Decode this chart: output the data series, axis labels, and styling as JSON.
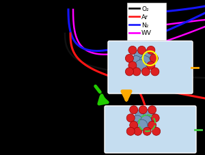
{
  "background_color": "#000000",
  "legend": {
    "labels": [
      "O₂",
      "Ar",
      "N₂",
      "WV"
    ],
    "colors": [
      "#111111",
      "#ff2020",
      "#2020ff",
      "#ff00ff"
    ],
    "fontsize": 6.5
  },
  "lines": {
    "O2": {
      "color": "#111111",
      "lw": 1.8
    },
    "Ar": {
      "color": "#ff1515",
      "lw": 2.2
    },
    "N2": {
      "color": "#1515ff",
      "lw": 2.2
    },
    "WV": {
      "color": "#ff00ff",
      "lw": 1.8
    }
  },
  "inset1_bg": "#c5ddf0",
  "inset2_bg": "#c5ddf0",
  "ti_color": "#7799bb",
  "o_color": "#dd2222",
  "arrow1_color": "#ffaa00",
  "arrow2_color": "#22cc00",
  "tick1_color": "#ffaa00",
  "tick2_color": "#44cc44"
}
